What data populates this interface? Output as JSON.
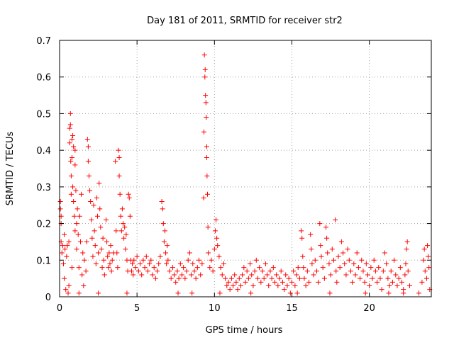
{
  "chart_data": {
    "type": "scatter",
    "title": "Day 181 of 2011, SRMTID for receiver str2",
    "xlabel": "GPS time / hours",
    "ylabel": "SRMTID / TECUs",
    "xlim": [
      0,
      24
    ],
    "ylim": [
      0,
      0.7
    ],
    "xticks": [
      0,
      5,
      10,
      15,
      20
    ],
    "xtick_labels": [
      "0",
      "5",
      "10",
      "15",
      "20"
    ],
    "yticks": [
      0,
      0.1,
      0.2,
      0.3,
      0.4,
      0.5,
      0.6,
      0.7
    ],
    "ytick_labels": [
      "0",
      "0.1",
      "0.2",
      "0.3",
      "0.4",
      "0.5",
      "0.6",
      "0.7"
    ],
    "grid": true,
    "marker": "plus",
    "color": "#ff0000",
    "points": [
      [
        0.05,
        0.26
      ],
      [
        0.05,
        0.24
      ],
      [
        0.1,
        0.22
      ],
      [
        0.1,
        0.2
      ],
      [
        0.1,
        0.15
      ],
      [
        0.15,
        0.12
      ],
      [
        0.2,
        0.14
      ],
      [
        0.25,
        0.09
      ],
      [
        0.3,
        0.17
      ],
      [
        0.3,
        0.05
      ],
      [
        0.35,
        0.13
      ],
      [
        0.4,
        0.02
      ],
      [
        0.45,
        0.11
      ],
      [
        0.5,
        0.14
      ],
      [
        0.55,
        0.01
      ],
      [
        0.6,
        0.15
      ],
      [
        0.6,
        0.03
      ],
      [
        0.65,
        0.46
      ],
      [
        0.65,
        0.42
      ],
      [
        0.7,
        0.5
      ],
      [
        0.7,
        0.47
      ],
      [
        0.72,
        0.37
      ],
      [
        0.75,
        0.33
      ],
      [
        0.75,
        0.28
      ],
      [
        0.8,
        0.43
      ],
      [
        0.8,
        0.38
      ],
      [
        0.85,
        0.44
      ],
      [
        0.85,
        0.3
      ],
      [
        0.9,
        0.41
      ],
      [
        0.9,
        0.26
      ],
      [
        0.95,
        0.22
      ],
      [
        1.0,
        0.4
      ],
      [
        1.0,
        0.36
      ],
      [
        1.0,
        0.18
      ],
      [
        1.05,
        0.29
      ],
      [
        1.1,
        0.2
      ],
      [
        1.1,
        0.13
      ],
      [
        1.15,
        0.24
      ],
      [
        1.2,
        0.17
      ],
      [
        1.25,
        0.08
      ],
      [
        1.3,
        0.22
      ],
      [
        1.35,
        0.15
      ],
      [
        1.4,
        0.28
      ],
      [
        1.45,
        0.06
      ],
      [
        1.5,
        0.12
      ],
      [
        1.55,
        0.03
      ],
      [
        1.6,
        0.1
      ],
      [
        1.7,
        0.07
      ],
      [
        1.75,
        0.15
      ],
      [
        1.8,
        0.43
      ],
      [
        1.85,
        0.41
      ],
      [
        1.85,
        0.37
      ],
      [
        1.9,
        0.33
      ],
      [
        1.95,
        0.29
      ],
      [
        2.0,
        0.26
      ],
      [
        2.05,
        0.21
      ],
      [
        2.1,
        0.16
      ],
      [
        2.15,
        0.11
      ],
      [
        2.2,
        0.25
      ],
      [
        2.25,
        0.18
      ],
      [
        2.3,
        0.14
      ],
      [
        2.35,
        0.09
      ],
      [
        2.4,
        0.27
      ],
      [
        2.45,
        0.22
      ],
      [
        2.5,
        0.12
      ],
      [
        2.55,
        0.31
      ],
      [
        2.6,
        0.24
      ],
      [
        2.65,
        0.19
      ],
      [
        2.7,
        0.13
      ],
      [
        2.75,
        0.08
      ],
      [
        2.8,
        0.16
      ],
      [
        2.85,
        0.1
      ],
      [
        2.9,
        0.06
      ],
      [
        3.0,
        0.21
      ],
      [
        3.05,
        0.15
      ],
      [
        3.1,
        0.11
      ],
      [
        3.15,
        0.08
      ],
      [
        3.2,
        0.12
      ],
      [
        3.25,
        0.09
      ],
      [
        3.3,
        0.14
      ],
      [
        3.35,
        0.07
      ],
      [
        3.4,
        0.1
      ],
      [
        3.5,
        0.12
      ],
      [
        3.6,
        0.37
      ],
      [
        3.65,
        0.18
      ],
      [
        3.7,
        0.12
      ],
      [
        3.75,
        0.08
      ],
      [
        3.8,
        0.4
      ],
      [
        3.85,
        0.38
      ],
      [
        3.85,
        0.33
      ],
      [
        3.9,
        0.28
      ],
      [
        3.95,
        0.22
      ],
      [
        4.0,
        0.18
      ],
      [
        4.05,
        0.24
      ],
      [
        4.1,
        0.2
      ],
      [
        4.15,
        0.16
      ],
      [
        4.2,
        0.19
      ],
      [
        4.25,
        0.13
      ],
      [
        4.3,
        0.17
      ],
      [
        4.35,
        0.1
      ],
      [
        4.4,
        0.07
      ],
      [
        4.45,
        0.28
      ],
      [
        4.5,
        0.27
      ],
      [
        4.55,
        0.22
      ],
      [
        4.6,
        0.1
      ],
      [
        4.65,
        0.07
      ],
      [
        4.7,
        0.09
      ],
      [
        4.75,
        0.06
      ],
      [
        4.8,
        0.1
      ],
      [
        4.9,
        0.08
      ],
      [
        5.0,
        0.11
      ],
      [
        5.1,
        0.07
      ],
      [
        5.2,
        0.09
      ],
      [
        5.3,
        0.06
      ],
      [
        5.4,
        0.1
      ],
      [
        5.5,
        0.08
      ],
      [
        5.6,
        0.11
      ],
      [
        5.7,
        0.07
      ],
      [
        5.8,
        0.09
      ],
      [
        5.9,
        0.1
      ],
      [
        6.0,
        0.06
      ],
      [
        6.1,
        0.08
      ],
      [
        6.2,
        0.05
      ],
      [
        6.3,
        0.07
      ],
      [
        6.4,
        0.09
      ],
      [
        6.5,
        0.11
      ],
      [
        6.6,
        0.26
      ],
      [
        6.65,
        0.24
      ],
      [
        6.7,
        0.2
      ],
      [
        6.75,
        0.15
      ],
      [
        6.8,
        0.18
      ],
      [
        6.85,
        0.12
      ],
      [
        6.9,
        0.09
      ],
      [
        6.95,
        0.14
      ],
      [
        7.0,
        0.1
      ],
      [
        7.1,
        0.07
      ],
      [
        7.2,
        0.05
      ],
      [
        7.3,
        0.08
      ],
      [
        7.4,
        0.06
      ],
      [
        7.5,
        0.04
      ],
      [
        7.6,
        0.07
      ],
      [
        7.7,
        0.05
      ],
      [
        7.8,
        0.09
      ],
      [
        7.9,
        0.06
      ],
      [
        8.0,
        0.08
      ],
      [
        8.1,
        0.05
      ],
      [
        8.2,
        0.07
      ],
      [
        8.3,
        0.1
      ],
      [
        8.4,
        0.12
      ],
      [
        8.5,
        0.06
      ],
      [
        8.6,
        0.09
      ],
      [
        8.7,
        0.07
      ],
      [
        8.8,
        0.05
      ],
      [
        8.9,
        0.08
      ],
      [
        9.0,
        0.1
      ],
      [
        9.1,
        0.06
      ],
      [
        9.2,
        0.09
      ],
      [
        9.3,
        0.27
      ],
      [
        9.32,
        0.45
      ],
      [
        9.35,
        0.66
      ],
      [
        9.38,
        0.6
      ],
      [
        9.4,
        0.62
      ],
      [
        9.42,
        0.55
      ],
      [
        9.45,
        0.53
      ],
      [
        9.47,
        0.49
      ],
      [
        9.5,
        0.41
      ],
      [
        9.5,
        0.38
      ],
      [
        9.52,
        0.33
      ],
      [
        9.55,
        0.28
      ],
      [
        9.58,
        0.19
      ],
      [
        9.6,
        0.12
      ],
      [
        9.7,
        0.08
      ],
      [
        9.8,
        0.1
      ],
      [
        9.9,
        0.07
      ],
      [
        10.0,
        0.13
      ],
      [
        10.05,
        0.18
      ],
      [
        10.1,
        0.21
      ],
      [
        10.15,
        0.16
      ],
      [
        10.2,
        0.14
      ],
      [
        10.3,
        0.11
      ],
      [
        10.4,
        0.08
      ],
      [
        10.5,
        0.06
      ],
      [
        10.6,
        0.09
      ],
      [
        10.7,
        0.05
      ],
      [
        10.8,
        0.03
      ],
      [
        10.9,
        0.04
      ],
      [
        11.0,
        0.02
      ],
      [
        11.1,
        0.05
      ],
      [
        11.2,
        0.03
      ],
      [
        11.3,
        0.06
      ],
      [
        11.4,
        0.04
      ],
      [
        11.5,
        0.02
      ],
      [
        11.6,
        0.05
      ],
      [
        11.7,
        0.03
      ],
      [
        11.8,
        0.06
      ],
      [
        11.9,
        0.08
      ],
      [
        12.0,
        0.04
      ],
      [
        12.1,
        0.07
      ],
      [
        12.2,
        0.05
      ],
      [
        12.3,
        0.09
      ],
      [
        12.4,
        0.06
      ],
      [
        12.5,
        0.03
      ],
      [
        12.6,
        0.07
      ],
      [
        12.7,
        0.1
      ],
      [
        12.8,
        0.05
      ],
      [
        12.9,
        0.08
      ],
      [
        13.0,
        0.04
      ],
      [
        13.1,
        0.07
      ],
      [
        13.2,
        0.05
      ],
      [
        13.3,
        0.09
      ],
      [
        13.4,
        0.06
      ],
      [
        13.5,
        0.03
      ],
      [
        13.6,
        0.07
      ],
      [
        13.7,
        0.05
      ],
      [
        13.8,
        0.08
      ],
      [
        13.9,
        0.04
      ],
      [
        14.0,
        0.06
      ],
      [
        14.1,
        0.03
      ],
      [
        14.2,
        0.05
      ],
      [
        14.3,
        0.07
      ],
      [
        14.4,
        0.04
      ],
      [
        14.5,
        0.02
      ],
      [
        14.6,
        0.06
      ],
      [
        14.7,
        0.03
      ],
      [
        14.8,
        0.05
      ],
      [
        14.9,
        0.01
      ],
      [
        15.0,
        0.04
      ],
      [
        15.1,
        0.07
      ],
      [
        15.2,
        0.03
      ],
      [
        15.3,
        0.06
      ],
      [
        15.4,
        0.08
      ],
      [
        15.5,
        0.05
      ],
      [
        15.6,
        0.18
      ],
      [
        15.65,
        0.16
      ],
      [
        15.7,
        0.11
      ],
      [
        15.75,
        0.08
      ],
      [
        15.8,
        0.05
      ],
      [
        15.9,
        0.03
      ],
      [
        16.0,
        0.07
      ],
      [
        16.1,
        0.04
      ],
      [
        16.2,
        0.17
      ],
      [
        16.25,
        0.13
      ],
      [
        16.3,
        0.09
      ],
      [
        16.4,
        0.06
      ],
      [
        16.5,
        0.1
      ],
      [
        16.6,
        0.07
      ],
      [
        16.7,
        0.04
      ],
      [
        16.8,
        0.2
      ],
      [
        16.85,
        0.14
      ],
      [
        16.9,
        0.11
      ],
      [
        17.0,
        0.08
      ],
      [
        17.1,
        0.05
      ],
      [
        17.2,
        0.19
      ],
      [
        17.25,
        0.16
      ],
      [
        17.3,
        0.12
      ],
      [
        17.4,
        0.09
      ],
      [
        17.5,
        0.06
      ],
      [
        17.6,
        0.13
      ],
      [
        17.7,
        0.1
      ],
      [
        17.8,
        0.21
      ],
      [
        17.85,
        0.07
      ],
      [
        17.9,
        0.04
      ],
      [
        18.0,
        0.11
      ],
      [
        18.1,
        0.08
      ],
      [
        18.2,
        0.15
      ],
      [
        18.3,
        0.12
      ],
      [
        18.4,
        0.09
      ],
      [
        18.5,
        0.06
      ],
      [
        18.6,
        0.13
      ],
      [
        18.7,
        0.1
      ],
      [
        18.8,
        0.07
      ],
      [
        18.9,
        0.04
      ],
      [
        19.0,
        0.09
      ],
      [
        19.1,
        0.06
      ],
      [
        19.2,
        0.12
      ],
      [
        19.3,
        0.08
      ],
      [
        19.4,
        0.05
      ],
      [
        19.5,
        0.1
      ],
      [
        19.6,
        0.07
      ],
      [
        19.7,
        0.04
      ],
      [
        19.8,
        0.09
      ],
      [
        19.9,
        0.06
      ],
      [
        20.0,
        0.03
      ],
      [
        20.1,
        0.08
      ],
      [
        20.2,
        0.05
      ],
      [
        20.3,
        0.1
      ],
      [
        20.4,
        0.07
      ],
      [
        20.5,
        0.04
      ],
      [
        20.6,
        0.08
      ],
      [
        20.7,
        0.05
      ],
      [
        20.8,
        0.02
      ],
      [
        20.9,
        0.07
      ],
      [
        21.0,
        0.12
      ],
      [
        21.1,
        0.09
      ],
      [
        21.2,
        0.05
      ],
      [
        21.3,
        0.03
      ],
      [
        21.4,
        0.07
      ],
      [
        21.5,
        0.04
      ],
      [
        21.6,
        0.1
      ],
      [
        21.7,
        0.06
      ],
      [
        21.8,
        0.03
      ],
      [
        21.9,
        0.05
      ],
      [
        22.0,
        0.08
      ],
      [
        22.1,
        0.04
      ],
      [
        22.2,
        0.02
      ],
      [
        22.3,
        0.06
      ],
      [
        22.35,
        0.09
      ],
      [
        22.4,
        0.13
      ],
      [
        22.45,
        0.15
      ],
      [
        22.5,
        0.07
      ],
      [
        22.6,
        0.03
      ],
      [
        23.4,
        0.04
      ],
      [
        23.5,
        0.1
      ],
      [
        23.55,
        0.13
      ],
      [
        23.6,
        0.07
      ],
      [
        23.7,
        0.05
      ],
      [
        23.75,
        0.14
      ],
      [
        23.8,
        0.11
      ],
      [
        23.85,
        0.08
      ],
      [
        23.9,
        0.02
      ],
      [
        0.8,
        0.08
      ],
      [
        1.25,
        0.01
      ],
      [
        2.5,
        0.01
      ],
      [
        4.35,
        0.01
      ],
      [
        7.65,
        0.01
      ],
      [
        8.55,
        0.01
      ],
      [
        10.35,
        0.01
      ],
      [
        12.35,
        0.01
      ],
      [
        15.35,
        0.01
      ],
      [
        17.45,
        0.01
      ],
      [
        19.75,
        0.01
      ],
      [
        21.25,
        0.01
      ],
      [
        22.2,
        0.01
      ],
      [
        23.2,
        0.01
      ]
    ]
  }
}
